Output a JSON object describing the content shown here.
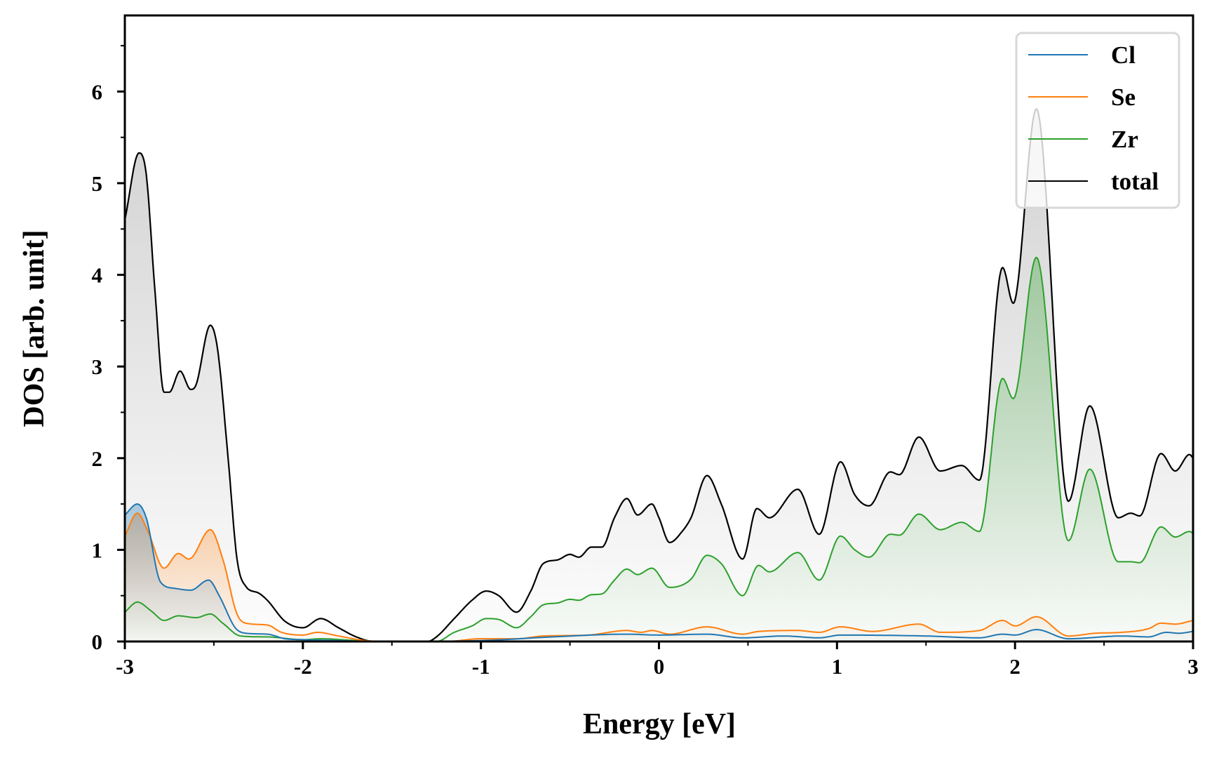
{
  "chart_data": {
    "type": "line",
    "title": "",
    "xlabel": "Energy [eV]",
    "ylabel": "DOS [arb. unit]",
    "xlim": [
      -3,
      3
    ],
    "ylim": [
      0,
      6.83
    ],
    "xticks": [
      "-3",
      "-2",
      "-1",
      "0",
      "1",
      "2",
      "3"
    ],
    "xtick_values": [
      -3,
      -2,
      -1,
      0,
      1,
      2,
      3
    ],
    "yticks": [
      "0",
      "1",
      "2",
      "3",
      "4",
      "5",
      "6"
    ],
    "ytick_values": [
      0,
      1,
      2,
      3,
      4,
      5,
      6
    ],
    "grid": false,
    "legend_position": "top-right",
    "series": [
      {
        "name": "Cl",
        "color": "#1f77b4",
        "filled": true,
        "points": [
          [
            -3.0,
            1.38
          ],
          [
            -2.93,
            1.5
          ],
          [
            -2.88,
            1.35
          ],
          [
            -2.8,
            0.65
          ],
          [
            -2.72,
            0.58
          ],
          [
            -2.63,
            0.56
          ],
          [
            -2.53,
            0.67
          ],
          [
            -2.47,
            0.5
          ],
          [
            -2.38,
            0.15
          ],
          [
            -2.32,
            0.09
          ],
          [
            -2.2,
            0.08
          ],
          [
            -2.1,
            0.03
          ],
          [
            -2.0,
            0.02
          ],
          [
            -1.8,
            0.01
          ],
          [
            -1.6,
            0
          ],
          [
            -1.0,
            0.01
          ],
          [
            -0.6,
            0.05
          ],
          [
            -0.18,
            0.08
          ],
          [
            0.0,
            0.07
          ],
          [
            0.27,
            0.08
          ],
          [
            0.47,
            0.04
          ],
          [
            0.7,
            0.06
          ],
          [
            0.9,
            0.04
          ],
          [
            1.02,
            0.07
          ],
          [
            1.5,
            0.06
          ],
          [
            1.8,
            0.04
          ],
          [
            1.93,
            0.08
          ],
          [
            2.0,
            0.07
          ],
          [
            2.12,
            0.13
          ],
          [
            2.3,
            0.03
          ],
          [
            2.6,
            0.06
          ],
          [
            2.75,
            0.05
          ],
          [
            2.85,
            0.1
          ],
          [
            2.92,
            0.09
          ],
          [
            3.0,
            0.11
          ]
        ]
      },
      {
        "name": "Se",
        "color": "#ff7f0e",
        "filled": true,
        "points": [
          [
            -3.0,
            1.15
          ],
          [
            -2.93,
            1.4
          ],
          [
            -2.87,
            1.2
          ],
          [
            -2.78,
            0.8
          ],
          [
            -2.7,
            0.96
          ],
          [
            -2.64,
            0.9
          ],
          [
            -2.52,
            1.22
          ],
          [
            -2.45,
            0.9
          ],
          [
            -2.37,
            0.3
          ],
          [
            -2.32,
            0.2
          ],
          [
            -2.2,
            0.18
          ],
          [
            -2.12,
            0.1
          ],
          [
            -2.0,
            0.07
          ],
          [
            -1.92,
            0.1
          ],
          [
            -1.8,
            0.06
          ],
          [
            -1.65,
            0.01
          ],
          [
            -1.5,
            0
          ],
          [
            -1.2,
            0
          ],
          [
            -1.0,
            0.03
          ],
          [
            -0.8,
            0.03
          ],
          [
            -0.65,
            0.06
          ],
          [
            -0.4,
            0.07
          ],
          [
            -0.18,
            0.12
          ],
          [
            -0.1,
            0.1
          ],
          [
            -0.04,
            0.12
          ],
          [
            0.06,
            0.08
          ],
          [
            0.27,
            0.16
          ],
          [
            0.47,
            0.08
          ],
          [
            0.56,
            0.11
          ],
          [
            0.78,
            0.12
          ],
          [
            0.9,
            0.1
          ],
          [
            1.02,
            0.16
          ],
          [
            1.2,
            0.11
          ],
          [
            1.46,
            0.19
          ],
          [
            1.58,
            0.1
          ],
          [
            1.8,
            0.12
          ],
          [
            1.93,
            0.23
          ],
          [
            2.0,
            0.17
          ],
          [
            2.12,
            0.27
          ],
          [
            2.3,
            0.06
          ],
          [
            2.45,
            0.09
          ],
          [
            2.6,
            0.1
          ],
          [
            2.75,
            0.14
          ],
          [
            2.82,
            0.2
          ],
          [
            2.9,
            0.19
          ],
          [
            3.0,
            0.23
          ]
        ]
      },
      {
        "name": "Zr",
        "color": "#2ca02c",
        "filled": true,
        "points": [
          [
            -3.0,
            0.32
          ],
          [
            -2.93,
            0.43
          ],
          [
            -2.85,
            0.33
          ],
          [
            -2.78,
            0.23
          ],
          [
            -2.7,
            0.28
          ],
          [
            -2.6,
            0.26
          ],
          [
            -2.52,
            0.3
          ],
          [
            -2.45,
            0.2
          ],
          [
            -2.35,
            0.06
          ],
          [
            -2.2,
            0.05
          ],
          [
            -2.0,
            0.02
          ],
          [
            -1.9,
            0.03
          ],
          [
            -1.7,
            0.01
          ],
          [
            -1.6,
            0
          ],
          [
            -1.25,
            0
          ],
          [
            -1.15,
            0.1
          ],
          [
            -1.05,
            0.17
          ],
          [
            -0.97,
            0.25
          ],
          [
            -0.9,
            0.24
          ],
          [
            -0.8,
            0.15
          ],
          [
            -0.72,
            0.27
          ],
          [
            -0.65,
            0.4
          ],
          [
            -0.57,
            0.42
          ],
          [
            -0.5,
            0.46
          ],
          [
            -0.45,
            0.45
          ],
          [
            -0.38,
            0.51
          ],
          [
            -0.32,
            0.52
          ],
          [
            -0.25,
            0.67
          ],
          [
            -0.18,
            0.79
          ],
          [
            -0.12,
            0.73
          ],
          [
            -0.04,
            0.8
          ],
          [
            0.06,
            0.59
          ],
          [
            0.18,
            0.68
          ],
          [
            0.27,
            0.94
          ],
          [
            0.35,
            0.85
          ],
          [
            0.47,
            0.5
          ],
          [
            0.56,
            0.83
          ],
          [
            0.62,
            0.76
          ],
          [
            0.78,
            0.97
          ],
          [
            0.9,
            0.67
          ],
          [
            1.02,
            1.15
          ],
          [
            1.1,
            1.0
          ],
          [
            1.18,
            0.92
          ],
          [
            1.3,
            1.17
          ],
          [
            1.35,
            1.16
          ],
          [
            1.46,
            1.39
          ],
          [
            1.58,
            1.22
          ],
          [
            1.7,
            1.3
          ],
          [
            1.8,
            1.2
          ],
          [
            1.93,
            2.87
          ],
          [
            1.99,
            2.65
          ],
          [
            2.12,
            4.19
          ],
          [
            2.3,
            1.1
          ],
          [
            2.42,
            1.88
          ],
          [
            2.58,
            0.87
          ],
          [
            2.65,
            0.87
          ],
          [
            2.7,
            0.86
          ],
          [
            2.82,
            1.25
          ],
          [
            2.9,
            1.14
          ],
          [
            2.98,
            1.2
          ],
          [
            3.0,
            1.18
          ]
        ]
      },
      {
        "name": "total",
        "color": "#000000",
        "filled": true,
        "points": [
          [
            -3.0,
            4.6
          ],
          [
            -2.92,
            5.33
          ],
          [
            -2.88,
            5.1
          ],
          [
            -2.83,
            3.8
          ],
          [
            -2.78,
            2.72
          ],
          [
            -2.75,
            2.72
          ],
          [
            -2.69,
            2.95
          ],
          [
            -2.63,
            2.75
          ],
          [
            -2.6,
            2.8
          ],
          [
            -2.52,
            3.45
          ],
          [
            -2.48,
            3.2
          ],
          [
            -2.42,
            2.0
          ],
          [
            -2.37,
            0.9
          ],
          [
            -2.32,
            0.6
          ],
          [
            -2.25,
            0.53
          ],
          [
            -2.2,
            0.45
          ],
          [
            -2.1,
            0.22
          ],
          [
            -2.0,
            0.15
          ],
          [
            -1.9,
            0.25
          ],
          [
            -1.8,
            0.15
          ],
          [
            -1.7,
            0.05
          ],
          [
            -1.6,
            0
          ],
          [
            -1.3,
            0
          ],
          [
            -1.25,
            0.05
          ],
          [
            -1.15,
            0.25
          ],
          [
            -1.05,
            0.45
          ],
          [
            -0.97,
            0.55
          ],
          [
            -0.9,
            0.5
          ],
          [
            -0.8,
            0.32
          ],
          [
            -0.72,
            0.55
          ],
          [
            -0.65,
            0.85
          ],
          [
            -0.57,
            0.89
          ],
          [
            -0.5,
            0.95
          ],
          [
            -0.45,
            0.92
          ],
          [
            -0.38,
            1.03
          ],
          [
            -0.32,
            1.03
          ],
          [
            -0.25,
            1.35
          ],
          [
            -0.18,
            1.56
          ],
          [
            -0.12,
            1.38
          ],
          [
            -0.04,
            1.5
          ],
          [
            0.0,
            1.35
          ],
          [
            0.06,
            1.08
          ],
          [
            0.13,
            1.2
          ],
          [
            0.18,
            1.35
          ],
          [
            0.27,
            1.81
          ],
          [
            0.35,
            1.5
          ],
          [
            0.47,
            0.9
          ],
          [
            0.55,
            1.45
          ],
          [
            0.62,
            1.35
          ],
          [
            0.78,
            1.66
          ],
          [
            0.9,
            1.17
          ],
          [
            1.02,
            1.96
          ],
          [
            1.1,
            1.6
          ],
          [
            1.18,
            1.48
          ],
          [
            1.3,
            1.85
          ],
          [
            1.35,
            1.82
          ],
          [
            1.46,
            2.23
          ],
          [
            1.58,
            1.86
          ],
          [
            1.7,
            1.92
          ],
          [
            1.8,
            1.76
          ],
          [
            1.93,
            4.08
          ],
          [
            1.99,
            3.69
          ],
          [
            2.12,
            5.81
          ],
          [
            2.3,
            1.53
          ],
          [
            2.42,
            2.57
          ],
          [
            2.58,
            1.35
          ],
          [
            2.65,
            1.4
          ],
          [
            2.7,
            1.37
          ],
          [
            2.82,
            2.05
          ],
          [
            2.9,
            1.86
          ],
          [
            2.98,
            2.04
          ],
          [
            3.0,
            2.0
          ]
        ]
      }
    ]
  }
}
